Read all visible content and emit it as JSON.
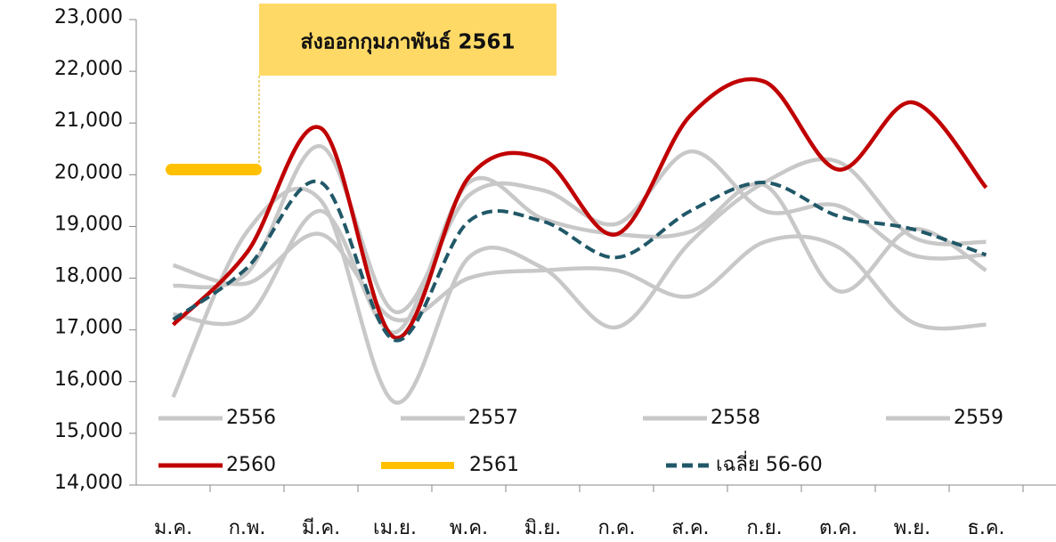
{
  "chart_data": {
    "type": "line",
    "annotation": "ส่งออกกุมภาพันธ์ 2561",
    "categories": [
      "ม.ค.",
      "ก.พ.",
      "มี.ค.",
      "เม.ย.",
      "พ.ค.",
      "มิ.ย.",
      "ก.ค.",
      "ส.ค.",
      "ก.ย.",
      "ต.ค.",
      "พ.ย.",
      "ธ.ค."
    ],
    "ylim": [
      14000,
      23000
    ],
    "yticks": [
      {
        "value": 14000,
        "label": "14,000"
      },
      {
        "value": 15000,
        "label": "15,000"
      },
      {
        "value": 16000,
        "label": "16,000"
      },
      {
        "value": 17000,
        "label": "17,000"
      },
      {
        "value": 18000,
        "label": "18,000"
      },
      {
        "value": 19000,
        "label": "19,000"
      },
      {
        "value": 20000,
        "label": "20,000"
      },
      {
        "value": 21000,
        "label": "21,000"
      },
      {
        "value": 22000,
        "label": "22,000"
      },
      {
        "value": 23000,
        "label": "23,000"
      }
    ],
    "series": [
      {
        "name": "2556",
        "color": "#c8c8c8",
        "values": [
          15700,
          18900,
          19500,
          15600,
          18400,
          18200,
          17050,
          18700,
          19850,
          20250,
          18800,
          18700
        ]
      },
      {
        "name": "2557",
        "color": "#c8c8c8",
        "values": [
          17850,
          18100,
          20550,
          17350,
          19600,
          19700,
          19050,
          20450,
          19300,
          19400,
          18450,
          18450
        ]
      },
      {
        "name": "2558",
        "color": "#c8c8c8",
        "values": [
          18250,
          17900,
          18850,
          17200,
          18000,
          18150,
          18150,
          17650,
          18700,
          18600,
          17150,
          17100
        ]
      },
      {
        "name": "2559",
        "color": "#c8c8c8",
        "values": [
          17300,
          17250,
          19300,
          16950,
          19850,
          19150,
          18850,
          18900,
          19800,
          17750,
          18950,
          18150
        ]
      },
      {
        "name": "2560",
        "color": "#c00000",
        "values": [
          17100,
          18500,
          20900,
          16850,
          19950,
          20300,
          18850,
          21150,
          21800,
          20100,
          21400,
          19750
        ]
      },
      {
        "name": "2561",
        "color": "#ffc000",
        "values": [
          20100,
          null,
          null,
          null,
          null,
          null,
          null,
          null,
          null,
          null,
          null,
          null
        ]
      },
      {
        "name": "เฉลี่ย 56-60",
        "color": "#215868",
        "dashed": true,
        "values": [
          17200,
          18200,
          19850,
          16800,
          19100,
          19100,
          18400,
          19300,
          19850,
          19200,
          18950,
          18450
        ]
      }
    ]
  }
}
